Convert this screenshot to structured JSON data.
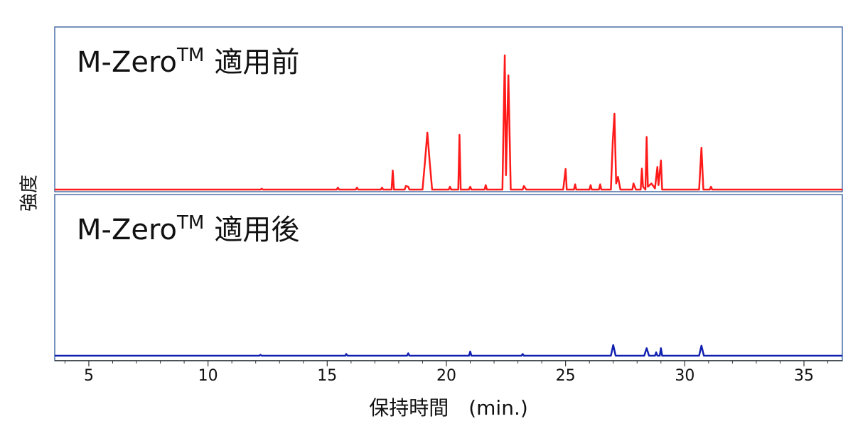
{
  "chart_data": [
    {
      "type": "line",
      "annotation": {
        "main": "M-Zero",
        "sup": "TM",
        "suffix": "適用前"
      },
      "ylabel": "強度",
      "color": "#ff1a1a",
      "xlim": [
        3.57,
        36.61
      ],
      "ylim": [
        0,
        100
      ],
      "x": [
        3.57,
        12.2,
        12.25,
        12.3,
        15.4,
        15.45,
        15.5,
        16.2,
        16.25,
        16.3,
        17.25,
        17.3,
        17.35,
        17.7,
        17.75,
        17.8,
        18.25,
        18.3,
        18.4,
        18.45,
        19.0,
        19.1,
        19.2,
        19.3,
        19.4,
        20.1,
        20.15,
        20.2,
        20.5,
        20.55,
        20.6,
        20.95,
        21.0,
        21.05,
        21.6,
        21.65,
        21.7,
        22.35,
        22.45,
        22.5,
        22.6,
        22.7,
        23.2,
        23.25,
        23.35,
        24.9,
        25.0,
        25.05,
        25.35,
        25.4,
        25.45,
        26.0,
        26.05,
        26.1,
        26.4,
        26.45,
        26.5,
        26.9,
        26.98,
        27.05,
        27.12,
        27.2,
        27.3,
        27.8,
        27.85,
        27.95,
        28.15,
        28.2,
        28.25,
        28.35,
        28.4,
        28.45,
        28.6,
        28.75,
        28.85,
        28.9,
        29.0,
        29.05,
        29.2,
        30.6,
        30.7,
        30.78,
        31.05,
        31.1,
        31.15,
        36.61
      ],
      "values": [
        1.3,
        1.3,
        1.8,
        1.3,
        1.3,
        2.5,
        1.3,
        1.3,
        2.5,
        1.3,
        1.3,
        2.5,
        1.3,
        1.3,
        12.9,
        1.3,
        1.3,
        3.5,
        3,
        1.3,
        1.3,
        18,
        35.8,
        18,
        1.3,
        1.3,
        3,
        1.3,
        1.3,
        34.5,
        1.3,
        1.3,
        3,
        1.3,
        1.3,
        4,
        1.3,
        1.3,
        82.8,
        10,
        70.7,
        1.3,
        1.3,
        3.5,
        1.3,
        1.3,
        13.8,
        1.3,
        1.3,
        4.5,
        1.3,
        1.3,
        4,
        1.3,
        1.3,
        4.5,
        1.3,
        1.3,
        31,
        47.4,
        5,
        9,
        1.3,
        1.3,
        5,
        1.3,
        1.3,
        14,
        3,
        1.3,
        33.2,
        3,
        5,
        2,
        15,
        4,
        19,
        1.3,
        1.3,
        1.3,
        26.7,
        1.3,
        1.3,
        3,
        1.3,
        1.3
      ]
    },
    {
      "type": "line",
      "annotation": {
        "main": "M-Zero",
        "sup": "TM",
        "suffix": "適用後"
      },
      "xlabel": "保持時間　(min.)",
      "color": "#1020b0",
      "xlim": [
        3.57,
        36.61
      ],
      "ylim": [
        0,
        100
      ],
      "xticks": [
        5,
        10,
        15,
        20,
        25,
        30,
        35
      ],
      "xminor_ticks": [
        4,
        6,
        7,
        8,
        9,
        11,
        12,
        13,
        14,
        16,
        17,
        18,
        19,
        21,
        22,
        23,
        24,
        26,
        27,
        28,
        29,
        31,
        32,
        33,
        34,
        36
      ],
      "x": [
        3.57,
        12.15,
        12.2,
        12.25,
        15.75,
        15.8,
        15.85,
        18.35,
        18.4,
        18.45,
        20.95,
        21.0,
        21.05,
        23.15,
        23.2,
        23.25,
        26.9,
        27.0,
        27.1,
        28.3,
        28.4,
        28.5,
        28.75,
        28.8,
        28.85,
        28.95,
        29.0,
        29.05,
        30.6,
        30.7,
        30.8,
        36.61
      ],
      "values": [
        3,
        3,
        3.5,
        3,
        3,
        4,
        3,
        3,
        4.5,
        3,
        3,
        5.5,
        3,
        3,
        4,
        3,
        3,
        9.4,
        3,
        3,
        7.5,
        3,
        3,
        5,
        3,
        3,
        7.5,
        3,
        3,
        9,
        3,
        3
      ]
    }
  ]
}
